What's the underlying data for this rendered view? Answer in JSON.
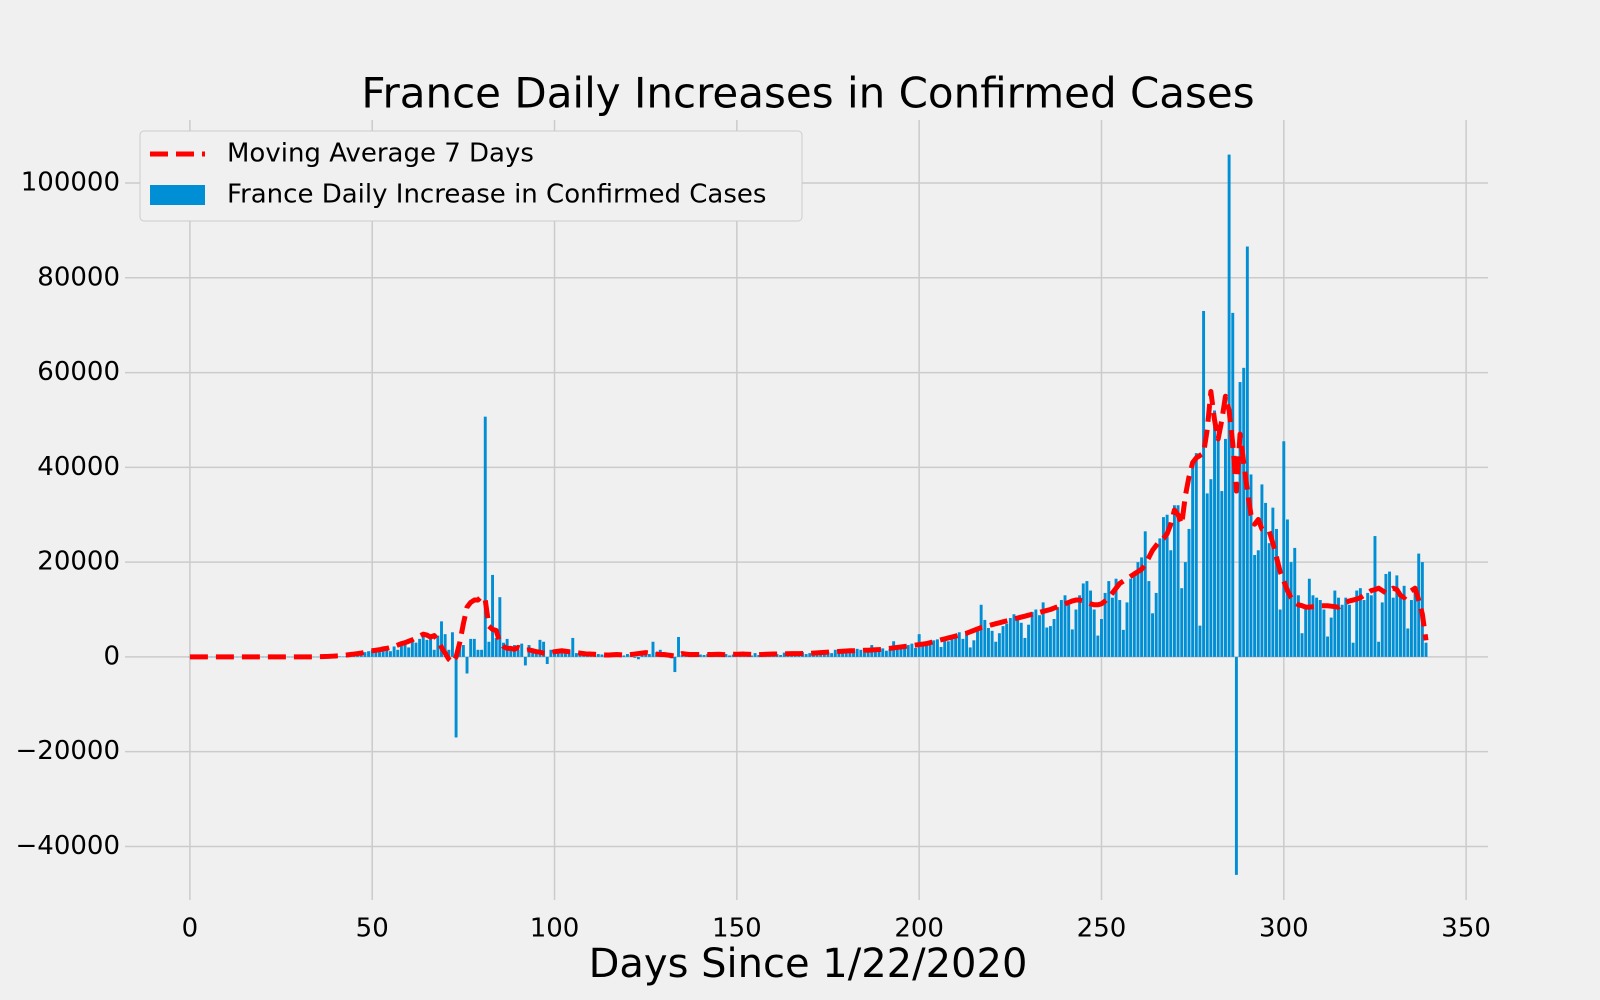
{
  "chart_data": {
    "type": "bar",
    "title": "France Daily Increases in Confirmed Cases",
    "x_label": "Days Since 1/22/2020",
    "xlim": [
      -17.8,
      356
    ],
    "ylim": [
      -51300,
      113300
    ],
    "xticks": [
      0,
      50,
      100,
      150,
      200,
      250,
      300,
      350
    ],
    "yticks": [
      {
        "value": -40000,
        "label": "−40000"
      },
      {
        "value": -20000,
        "label": "−20000"
      },
      0,
      20000,
      40000,
      60000,
      80000,
      100000
    ],
    "grid": true,
    "legend": "upper left",
    "x": [
      0,
      1,
      2,
      3,
      4,
      5,
      6,
      7,
      8,
      9,
      10,
      11,
      12,
      13,
      14,
      15,
      16,
      17,
      18,
      19,
      20,
      21,
      22,
      23,
      24,
      25,
      26,
      27,
      28,
      29,
      30,
      31,
      32,
      33,
      34,
      35,
      36,
      37,
      38,
      39,
      40,
      41,
      42,
      43,
      44,
      45,
      46,
      47,
      48,
      49,
      50,
      51,
      52,
      53,
      54,
      55,
      56,
      57,
      58,
      59,
      60,
      61,
      62,
      63,
      64,
      65,
      66,
      67,
      68,
      69,
      70,
      71,
      72,
      73,
      74,
      75,
      76,
      77,
      78,
      79,
      80,
      81,
      82,
      83,
      84,
      85,
      86,
      87,
      88,
      89,
      90,
      91,
      92,
      93,
      94,
      95,
      96,
      97,
      98,
      99,
      100,
      101,
      102,
      103,
      104,
      105,
      106,
      107,
      108,
      109,
      110,
      111,
      112,
      113,
      114,
      115,
      116,
      117,
      118,
      119,
      120,
      121,
      122,
      123,
      124,
      125,
      126,
      127,
      128,
      129,
      130,
      131,
      132,
      133,
      134,
      135,
      136,
      137,
      138,
      139,
      140,
      141,
      142,
      143,
      144,
      145,
      146,
      147,
      148,
      149,
      150,
      151,
      152,
      153,
      154,
      155,
      156,
      157,
      158,
      159,
      160,
      161,
      162,
      163,
      164,
      165,
      166,
      167,
      168,
      169,
      170,
      171,
      172,
      173,
      174,
      175,
      176,
      177,
      178,
      179,
      180,
      181,
      182,
      183,
      184,
      185,
      186,
      187,
      188,
      189,
      190,
      191,
      192,
      193,
      194,
      195,
      196,
      197,
      198,
      199,
      200,
      201,
      202,
      203,
      204,
      205,
      206,
      207,
      208,
      209,
      210,
      211,
      212,
      213,
      214,
      215,
      216,
      217,
      218,
      219,
      220,
      221,
      222,
      223,
      224,
      225,
      226,
      227,
      228,
      229,
      230,
      231,
      232,
      233,
      234,
      235,
      236,
      237,
      238,
      239,
      240,
      241,
      242,
      243,
      244,
      245,
      246,
      247,
      248,
      249,
      250,
      251,
      252,
      253,
      254,
      255,
      256,
      257,
      258,
      259,
      260,
      261,
      262,
      263,
      264,
      265,
      266,
      267,
      268,
      269,
      270,
      271,
      272,
      273,
      274,
      275,
      276,
      277,
      278,
      279,
      280,
      281,
      282,
      283,
      284,
      285,
      286,
      287,
      288,
      289,
      290,
      291,
      292,
      293,
      294,
      295,
      296,
      297,
      298,
      299,
      300,
      301,
      302,
      303,
      304,
      305,
      306,
      307,
      308,
      309,
      310,
      311,
      312,
      313,
      314,
      315,
      316,
      317,
      318,
      319,
      320,
      321,
      322,
      323,
      324,
      325,
      326,
      327,
      328,
      329,
      330,
      331,
      332,
      333,
      334,
      335,
      336,
      337,
      338,
      339
    ],
    "series": [
      {
        "name": "Moving Average 7 Days",
        "type": "line",
        "color": "#ff0000",
        "dashed": true,
        "values": [
          0,
          0,
          0,
          0,
          0,
          0,
          0,
          0,
          0,
          0,
          0,
          0,
          0,
          0,
          0,
          0,
          0,
          0,
          0,
          0,
          0,
          0,
          0,
          0,
          0,
          0,
          0,
          0,
          0,
          0,
          0,
          0,
          0,
          0,
          0,
          50,
          60,
          80,
          100,
          150,
          200,
          250,
          300,
          400,
          500,
          600,
          700,
          800,
          1000,
          1200,
          1300,
          1400,
          1500,
          1700,
          1800,
          2000,
          2200,
          2500,
          2800,
          3000,
          3300,
          3600,
          4000,
          4400,
          4800,
          4600,
          4200,
          4500,
          3500,
          2000,
          800,
          -500,
          -1200,
          0,
          3000,
          7000,
          10500,
          11500,
          12000,
          12000,
          12800,
          12000,
          6500,
          5800,
          5600,
          3000,
          2200,
          1800,
          1800,
          1600,
          2000,
          1800,
          1400,
          1500,
          1300,
          1100,
          1000,
          800,
          700,
          900,
          1100,
          1200,
          1300,
          1200,
          1100,
          1000,
          900,
          800,
          700,
          600,
          600,
          550,
          500,
          450,
          400,
          400,
          450,
          500,
          450,
          400,
          400,
          500,
          600,
          700,
          800,
          900,
          800,
          700,
          600,
          500,
          500,
          400,
          300,
          200,
          400,
          700,
          600,
          500,
          500,
          500,
          500,
          550,
          500,
          520,
          540,
          560,
          500,
          480,
          520,
          550,
          560,
          580,
          600,
          560,
          520,
          500,
          480,
          520,
          560,
          580,
          600,
          620,
          640,
          650,
          660,
          680,
          700,
          700,
          720,
          740,
          760,
          800,
          850,
          900,
          950,
          1000,
          1050,
          1100,
          1150,
          1200,
          1250,
          1300,
          1300,
          1350,
          1350,
          1400,
          1400,
          1450,
          1500,
          1550,
          1600,
          1700,
          1800,
          1900,
          2000,
          2100,
          2200,
          2300,
          2400,
          2500,
          2600,
          2700,
          2800,
          3000,
          3200,
          3400,
          3600,
          3800,
          4000,
          4200,
          4400,
          4600,
          4800,
          5000,
          5300,
          5600,
          5900,
          6200,
          6400,
          6600,
          6800,
          7000,
          7200,
          7400,
          7600,
          7800,
          8000,
          8200,
          8400,
          8600,
          8800,
          9000,
          9200,
          9400,
          9600,
          9800,
          10000,
          10300,
          10600,
          10900,
          11200,
          11500,
          11800,
          12000,
          12000,
          11800,
          11500,
          11200,
          11000,
          11000,
          11200,
          11800,
          12500,
          13500,
          14500,
          15500,
          16000,
          16500,
          17000,
          17500,
          18000,
          18500,
          19500,
          21000,
          22500,
          23500,
          24500,
          25000,
          26000,
          28000,
          31000,
          30000,
          28000,
          34000,
          38000,
          41000,
          42000,
          42500,
          43000,
          48000,
          56000,
          50000,
          46000,
          50000,
          55000,
          52000,
          45000,
          35000,
          47000,
          41000,
          35000,
          30000,
          28000,
          29000,
          27000,
          27000,
          26500,
          24000,
          21000,
          18000,
          16000,
          14000,
          12500,
          11500,
          11000,
          10800,
          10500,
          10500,
          10600,
          10700,
          10800,
          10800,
          10800,
          10700,
          10600,
          10500,
          11000,
          11500,
          11800,
          12000,
          12200,
          12500,
          13000,
          13500,
          14000,
          14200,
          14500,
          14000,
          13500,
          14000,
          14500,
          14200,
          13000,
          12500,
          13500,
          14000,
          14500,
          12000,
          9000,
          3500
        ]
      },
      {
        "name": "France Daily Increase in Confirmed Cases",
        "type": "bar",
        "color": "#008fd5",
        "values": [
          0,
          0,
          0,
          0,
          0,
          0,
          0,
          0,
          0,
          0,
          0,
          0,
          0,
          0,
          0,
          0,
          0,
          0,
          0,
          0,
          0,
          0,
          0,
          0,
          0,
          0,
          0,
          0,
          0,
          0,
          0,
          0,
          0,
          0,
          0,
          0,
          0,
          0,
          0,
          0,
          20,
          100,
          50,
          200,
          300,
          400,
          600,
          800,
          1000,
          1200,
          1400,
          1800,
          1000,
          1500,
          2000,
          1200,
          2200,
          1500,
          2500,
          2800,
          2000,
          3200,
          3000,
          3800,
          4500,
          3600,
          4200,
          1500,
          4500,
          7500,
          4800,
          1500,
          5200,
          -17000,
          3000,
          2500,
          -3500,
          3800,
          3800,
          1500,
          1500,
          50700,
          3200,
          17300,
          4000,
          12600,
          3000,
          3800,
          2000,
          2500,
          1500,
          2800,
          -1800,
          2500,
          1800,
          1200,
          3600,
          3200,
          -1500,
          1500,
          900,
          1000,
          1500,
          1200,
          1300,
          4000,
          800,
          600,
          500,
          700,
          500,
          400,
          600,
          500,
          300,
          400,
          600,
          500,
          200,
          300,
          600,
          400,
          -200,
          -500,
          800,
          1200,
          600,
          3200,
          1000,
          1500,
          500,
          200,
          -300,
          -3200,
          4200,
          500,
          400,
          600,
          800,
          300,
          500,
          400,
          600,
          300,
          700,
          500,
          400,
          600,
          300,
          500,
          600,
          400,
          700,
          500,
          300,
          800,
          400,
          600,
          500,
          300,
          700,
          600,
          400,
          900,
          800,
          600,
          500,
          700,
          1000,
          600,
          800,
          1200,
          900,
          1100,
          1300,
          1000,
          800,
          1500,
          1200,
          1400,
          1600,
          1300,
          1100,
          1700,
          1500,
          900,
          1200,
          2500,
          1400,
          1600,
          1800,
          1300,
          1700,
          3300,
          2000,
          2200,
          1800,
          2500,
          2800,
          1900,
          4800,
          2500,
          3000,
          2700,
          3500,
          3700,
          2100,
          4200,
          3300,
          4500,
          4700,
          5200,
          3800,
          5100,
          2000,
          3500,
          6200,
          11000,
          7800,
          6100,
          5500,
          3200,
          5000,
          6500,
          7000,
          8200,
          9000,
          8500,
          7200,
          4000,
          6800,
          9500,
          10000,
          8800,
          11500,
          6200,
          6500,
          8000,
          10500,
          12000,
          13000,
          11000,
          5800,
          10000,
          13000,
          15500,
          16000,
          14000,
          10000,
          4500,
          8000,
          13500,
          16000,
          12500,
          16500,
          12000,
          5700,
          11500,
          16500,
          18000,
          20000,
          21000,
          26500,
          16000,
          9200,
          13500,
          25000,
          29500,
          30000,
          22500,
          32000,
          32000,
          14500,
          20000,
          27000,
          41500,
          43000,
          6600,
          73000,
          34500,
          37500,
          52000,
          49000,
          35000,
          46000,
          106000,
          72600,
          -46000,
          58000,
          61000,
          86600,
          38500,
          21500,
          22500,
          36400,
          32500,
          24000,
          31500,
          27000,
          10000,
          45500,
          29000,
          20000,
          23000,
          13000,
          5000,
          10000,
          16500,
          13000,
          12500,
          12000,
          10000,
          4300,
          8300,
          14000,
          12500,
          11000,
          12500,
          11000,
          3000,
          14000,
          14500,
          12000,
          13500,
          13000,
          25500,
          3200,
          11500,
          17500,
          18000,
          12500,
          17200,
          13500,
          15000,
          6000,
          12000,
          14000,
          21800,
          20000,
          3000
        ]
      }
    ]
  }
}
